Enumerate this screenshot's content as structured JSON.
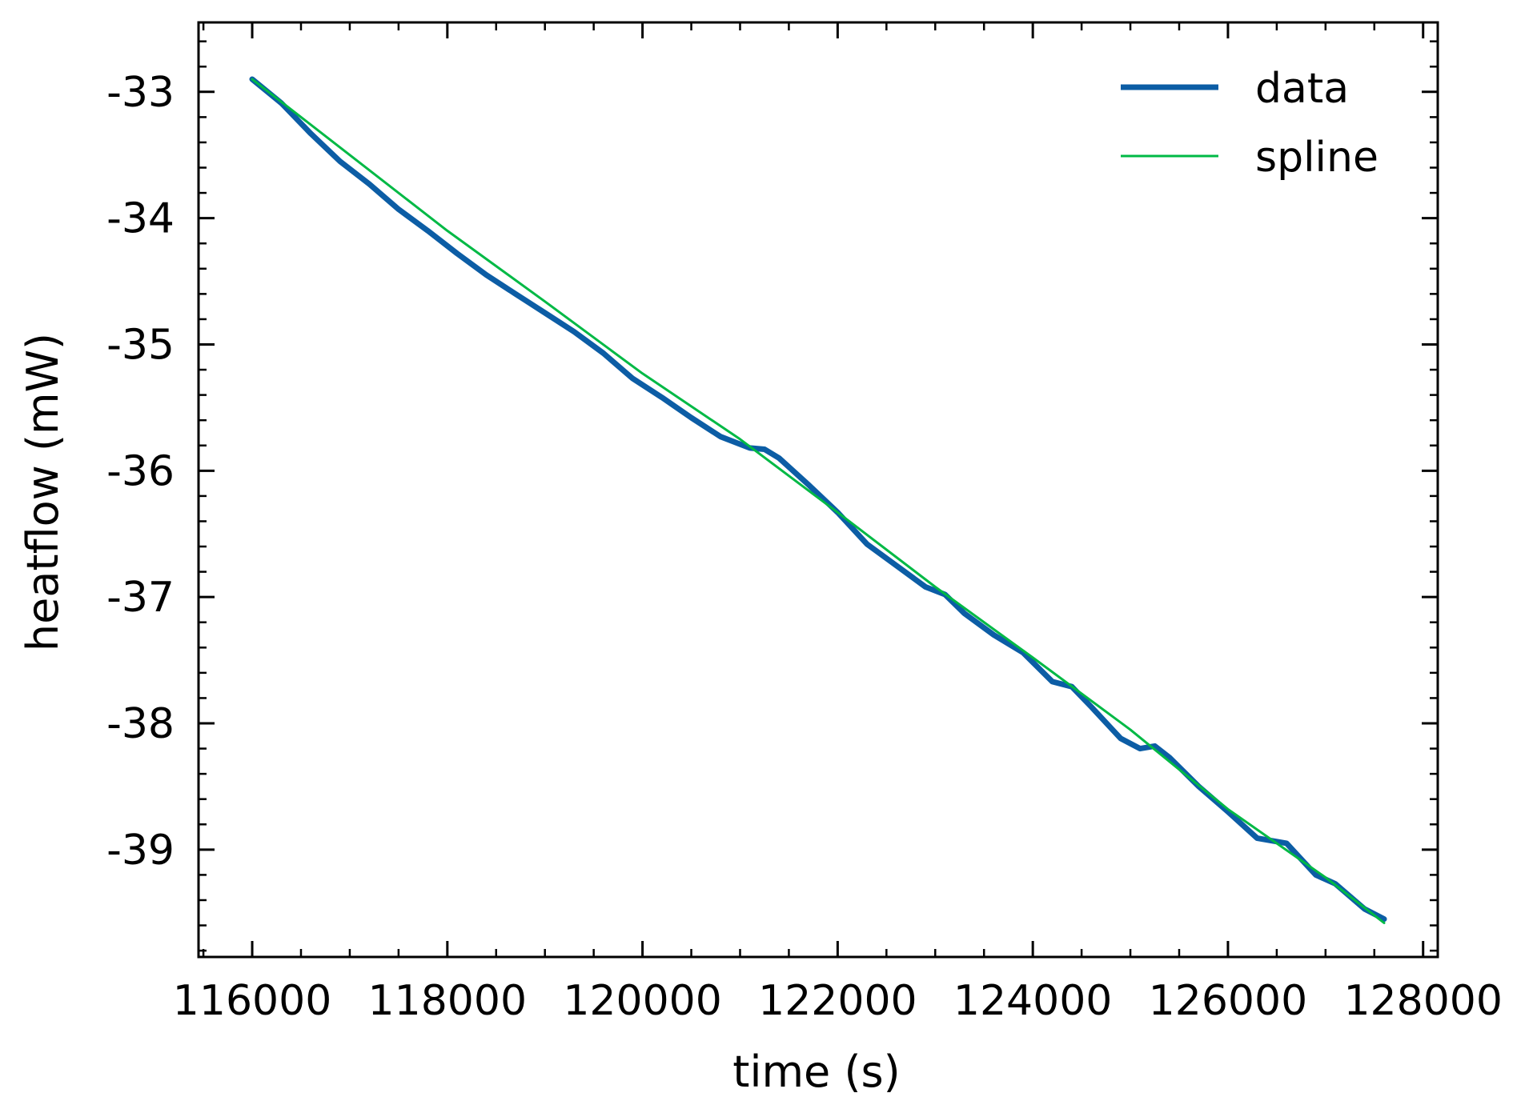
{
  "chart_data": {
    "type": "line",
    "xlabel": "time (s)",
    "ylabel": "heatflow (mW)",
    "xlim": [
      115450,
      128150
    ],
    "ylim": [
      -39.85,
      -32.45
    ],
    "x_ticks": [
      116000,
      118000,
      120000,
      122000,
      124000,
      126000,
      128000
    ],
    "x_tick_labels": [
      "116000",
      "118000",
      "120000",
      "122000",
      "124000",
      "126000",
      "128000"
    ],
    "x_minor_step": 500,
    "y_ticks": [
      -39,
      -38,
      -37,
      -36,
      -35,
      -34,
      -33
    ],
    "y_tick_labels": [
      "-39",
      "-38",
      "-37",
      "-36",
      "-35",
      "-34",
      "-33"
    ],
    "y_minor_step": 0.2,
    "grid": false,
    "legend_position": "top-right",
    "series": [
      {
        "name": "data",
        "color": "#0c5da5",
        "x": [
          116000,
          116300,
          116600,
          116900,
          117200,
          117500,
          117800,
          118100,
          118400,
          118700,
          119000,
          119300,
          119600,
          119900,
          120200,
          120500,
          120800,
          121100,
          121250,
          121400,
          121700,
          122000,
          122300,
          122600,
          122900,
          123100,
          123300,
          123600,
          123900,
          124200,
          124400,
          124600,
          124900,
          125100,
          125250,
          125400,
          125700,
          126000,
          126300,
          126600,
          126900,
          127100,
          127400,
          127600
        ],
        "y": [
          -32.9,
          -33.09,
          -33.33,
          -33.55,
          -33.73,
          -33.93,
          -34.1,
          -34.28,
          -34.45,
          -34.6,
          -34.75,
          -34.9,
          -35.07,
          -35.27,
          -35.42,
          -35.58,
          -35.73,
          -35.82,
          -35.83,
          -35.9,
          -36.11,
          -36.33,
          -36.58,
          -36.75,
          -36.92,
          -36.98,
          -37.13,
          -37.3,
          -37.44,
          -37.67,
          -37.71,
          -37.87,
          -38.12,
          -38.2,
          -38.18,
          -38.27,
          -38.5,
          -38.7,
          -38.91,
          -38.95,
          -39.2,
          -39.27,
          -39.47,
          -39.55
        ]
      },
      {
        "name": "spline",
        "color": "#00b945",
        "x": [
          116000,
          117000,
          118000,
          119000,
          120000,
          121000,
          122000,
          123000,
          124000,
          125000,
          126000,
          127000,
          127600
        ],
        "y": [
          -32.9,
          -33.5,
          -34.1,
          -34.66,
          -35.23,
          -35.75,
          -36.33,
          -36.92,
          -37.48,
          -38.05,
          -38.68,
          -39.22,
          -39.58
        ]
      }
    ]
  }
}
